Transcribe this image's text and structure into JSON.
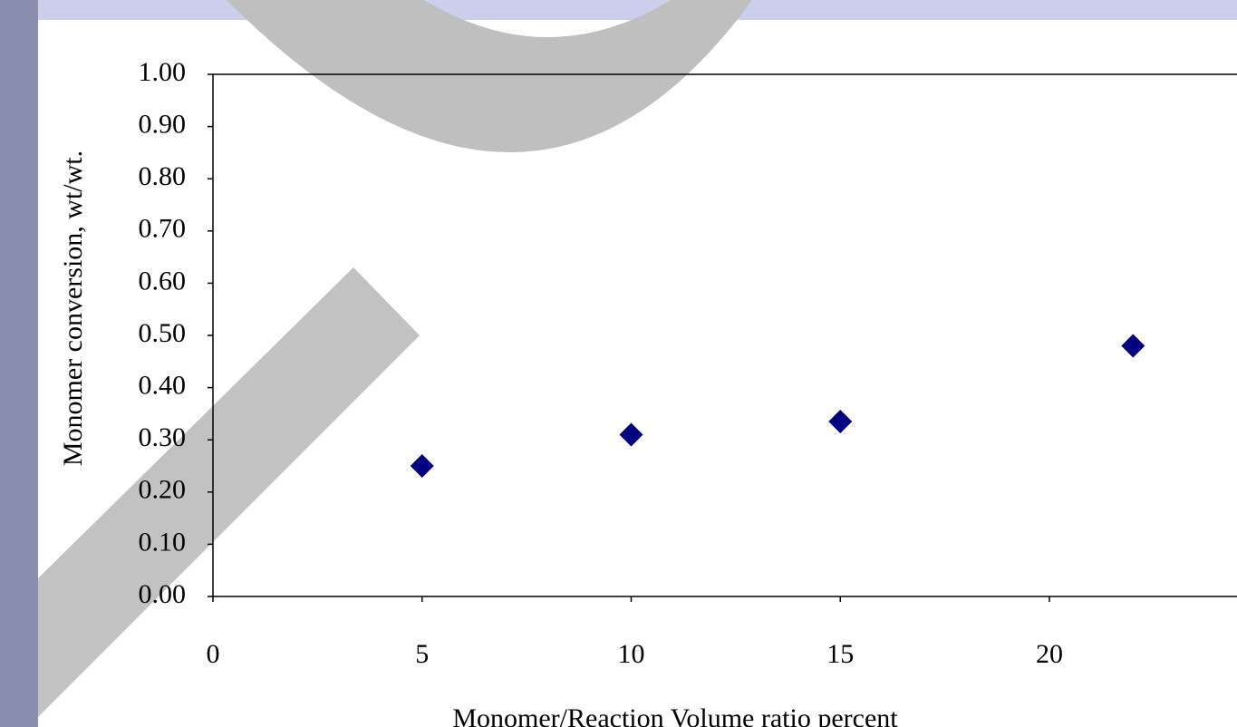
{
  "chart_data": {
    "type": "scatter",
    "x_label": "Monomer/Reaction Volume ratio percent",
    "y_label": "Monomer conversion, wt/wt.",
    "x": [
      5,
      10,
      15,
      22
    ],
    "values": [
      0.25,
      0.31,
      0.335,
      0.48
    ],
    "color": "#000080",
    "xlim": [
      0,
      25
    ],
    "xticks": [
      0,
      5,
      10,
      15,
      20
    ],
    "ylim": [
      0,
      1
    ],
    "yticks": [
      {
        "value": 0,
        "label": "0.00"
      },
      {
        "value": 0.1,
        "label": "0.10"
      },
      {
        "value": 0.2,
        "label": "0.20"
      },
      {
        "value": 0.3,
        "label": "0.30"
      },
      {
        "value": 0.4,
        "label": "0.40"
      },
      {
        "value": 0.5,
        "label": "0.50"
      },
      {
        "value": 0.6,
        "label": "0.60"
      },
      {
        "value": 0.7,
        "label": "0.70"
      },
      {
        "value": 0.8,
        "label": "0.80"
      },
      {
        "value": 0.9,
        "label": "0.90"
      },
      {
        "value": 1,
        "label": "1.00"
      }
    ]
  }
}
